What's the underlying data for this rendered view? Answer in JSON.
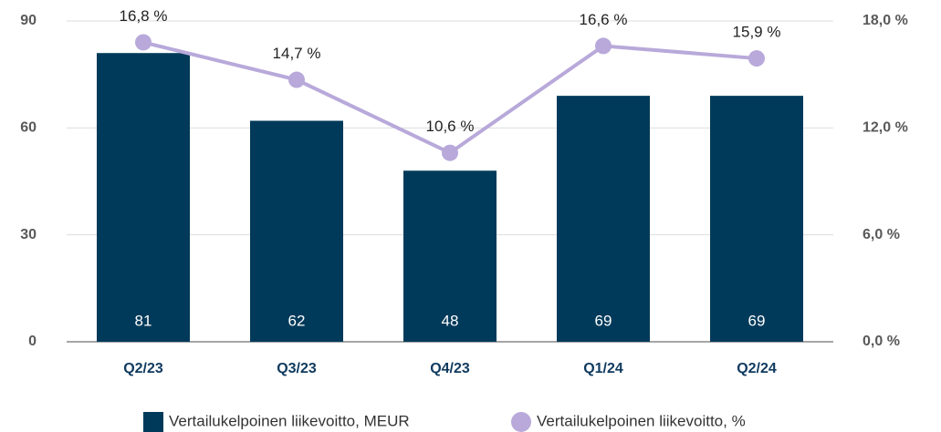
{
  "chart_data": {
    "type": "bar",
    "categories": [
      "Q2/23",
      "Q3/23",
      "Q4/23",
      "Q1/24",
      "Q2/24"
    ],
    "series": [
      {
        "name": "Vertailukelpoinen liikevoitto, MEUR",
        "color": "#003a5a",
        "type": "bar",
        "values": [
          81,
          62,
          48,
          69,
          69
        ]
      },
      {
        "name": "Vertailukelpoinen liikevoitto, %",
        "color": "#b8a9da",
        "type": "line",
        "axis": "y2",
        "values": [
          16.8,
          14.7,
          10.6,
          16.6,
          15.9
        ],
        "value_labels": [
          "16,8 %",
          "14,7 %",
          "10,6 %",
          "16,6 %",
          "15,9 %"
        ]
      }
    ],
    "ylim": [
      0,
      90
    ],
    "yticks": [
      0,
      30,
      60,
      90
    ],
    "y2lim": [
      0,
      18
    ],
    "y2ticks": [
      {
        "value": 0,
        "label": "0,0 %"
      },
      {
        "value": 6,
        "label": "6,0 %"
      },
      {
        "value": 12,
        "label": "12,0 %"
      },
      {
        "value": 18,
        "label": "18,0 %"
      }
    ],
    "grid": true,
    "legend": "bottom"
  }
}
